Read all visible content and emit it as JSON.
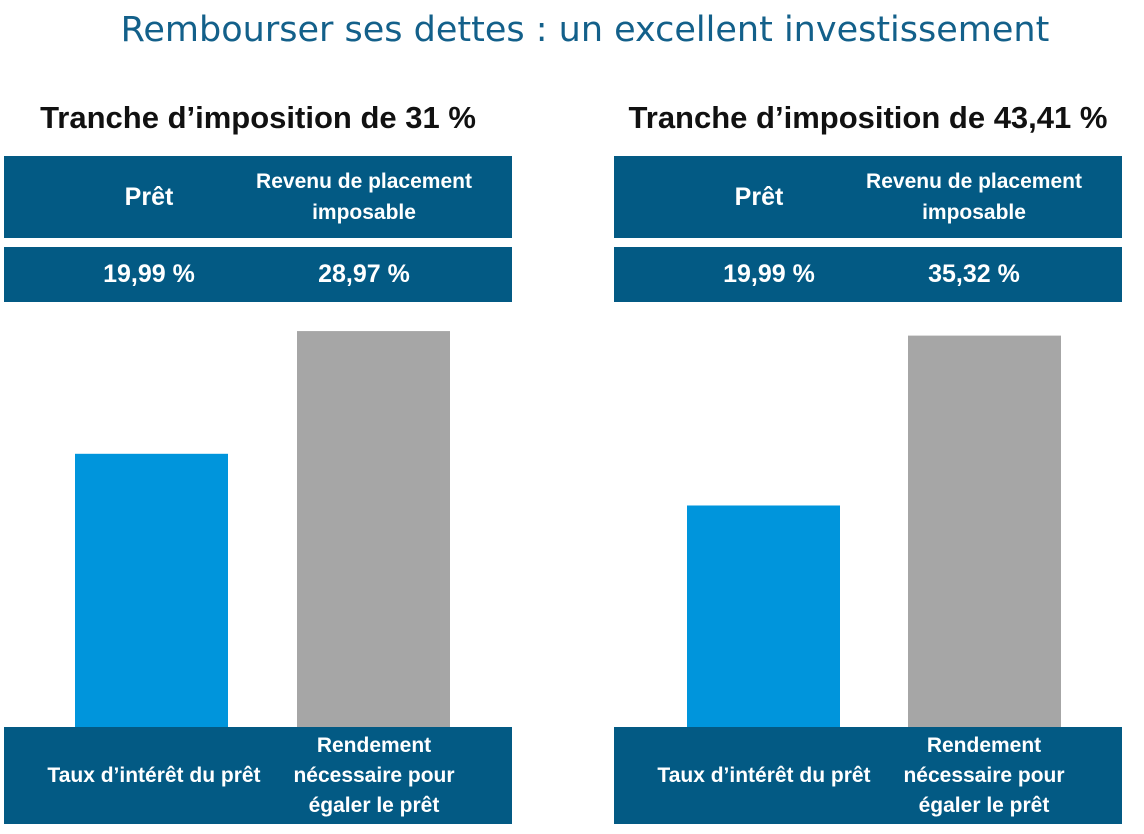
{
  "title": "Rembourser ses dettes : un excellent investissement",
  "colors": {
    "band": "#035a84",
    "title": "#13608a",
    "loan_bar": "#0095dc",
    "yield_bar": "#a6a6a6"
  },
  "chart_data": [
    {
      "type": "bar",
      "title": "Tranche d’imposition de 31 %",
      "headers": [
        "Prêt",
        "Revenu de placement imposable"
      ],
      "value_labels": [
        "19,99 %",
        "28,97 %"
      ],
      "categories": [
        "Taux d’intérêt du prêt",
        "Rendement nécessaire pour égaler le prêt"
      ],
      "values": [
        19.99,
        28.97
      ],
      "ylim": [
        0,
        30
      ],
      "grid": false
    },
    {
      "type": "bar",
      "title": "Tranche d’imposition de 43,41 %",
      "headers": [
        "Prêt",
        "Revenu de placement imposable"
      ],
      "value_labels": [
        "19,99 %",
        "35,32 %"
      ],
      "categories": [
        "Taux d’intérêt du prêt",
        "Rendement nécessaire pour égaler le prêt"
      ],
      "values": [
        19.99,
        35.32
      ],
      "ylim": [
        0,
        37
      ],
      "grid": false
    }
  ]
}
